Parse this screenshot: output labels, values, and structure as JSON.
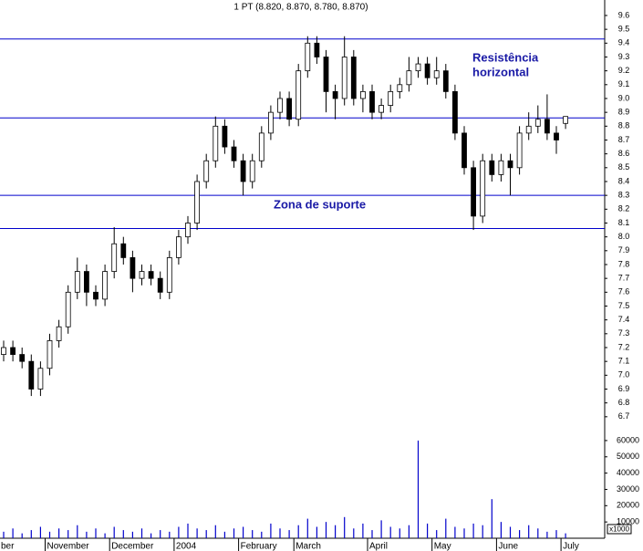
{
  "chart_data": {
    "type": "candlestick",
    "title": "1 PT (8.820, 8.870, 8.780, 8.870)",
    "annotations": [
      "Resistência",
      "horizontal",
      "Zona de suporte"
    ],
    "categories": [
      "ber",
      null,
      null,
      null,
      null,
      "November",
      null,
      null,
      null,
      null,
      null,
      null,
      "December",
      null,
      null,
      null,
      null,
      null,
      null,
      "2004",
      null,
      null,
      null,
      null,
      null,
      null,
      "February",
      null,
      null,
      null,
      null,
      null,
      "March",
      null,
      null,
      null,
      null,
      null,
      null,
      null,
      "April",
      null,
      null,
      null,
      null,
      null,
      null,
      "May",
      null,
      null,
      null,
      null,
      null,
      null,
      "June",
      null,
      null,
      null,
      null,
      null,
      null,
      "July"
    ],
    "open": [
      7.15,
      7.2,
      7.15,
      7.1,
      6.9,
      7.05,
      7.25,
      7.35,
      7.6,
      7.75,
      7.6,
      7.55,
      7.75,
      7.95,
      7.85,
      7.7,
      7.75,
      7.7,
      7.6,
      7.85,
      8.0,
      8.1,
      8.4,
      8.55,
      8.8,
      8.65,
      8.55,
      8.4,
      8.55,
      8.75,
      8.9,
      9.0,
      8.85,
      9.2,
      9.4,
      9.3,
      9.05,
      9.0,
      9.3,
      9.0,
      9.05,
      8.9,
      8.95,
      9.05,
      9.1,
      9.2,
      9.25,
      9.15,
      9.2,
      9.05,
      8.75,
      8.5,
      8.15,
      8.55,
      8.45,
      8.55,
      8.5,
      8.75,
      8.8,
      8.85,
      8.75,
      8.82
    ],
    "high": [
      7.25,
      7.25,
      7.2,
      7.15,
      7.1,
      7.3,
      7.4,
      7.65,
      7.85,
      7.8,
      7.65,
      7.8,
      8.07,
      8.0,
      7.9,
      7.8,
      7.8,
      7.75,
      7.9,
      8.05,
      8.15,
      8.45,
      8.6,
      8.87,
      8.85,
      8.7,
      8.6,
      8.6,
      8.8,
      8.95,
      9.05,
      9.05,
      9.25,
      9.45,
      9.45,
      9.35,
      9.1,
      9.45,
      9.35,
      9.1,
      9.1,
      9.0,
      9.1,
      9.15,
      9.3,
      9.3,
      9.3,
      9.3,
      9.25,
      9.1,
      8.8,
      8.55,
      8.6,
      8.6,
      8.6,
      8.6,
      8.8,
      8.9,
      8.95,
      9.03,
      8.8,
      8.87
    ],
    "low": [
      7.1,
      7.1,
      7.05,
      6.85,
      6.85,
      7.0,
      7.2,
      7.3,
      7.55,
      7.5,
      7.5,
      7.5,
      7.7,
      7.8,
      7.6,
      7.65,
      7.65,
      7.55,
      7.55,
      7.8,
      7.95,
      8.05,
      8.35,
      8.5,
      8.6,
      8.5,
      8.3,
      8.35,
      8.5,
      8.7,
      8.85,
      8.8,
      8.8,
      9.15,
      9.25,
      8.9,
      8.85,
      8.95,
      8.95,
      8.9,
      8.85,
      8.85,
      8.9,
      9.0,
      9.05,
      9.15,
      9.1,
      9.1,
      9.0,
      8.7,
      8.45,
      8.05,
      8.1,
      8.4,
      8.4,
      8.3,
      8.45,
      8.7,
      8.75,
      8.7,
      8.6,
      8.78
    ],
    "close": [
      7.2,
      7.15,
      7.1,
      6.9,
      7.05,
      7.25,
      7.35,
      7.6,
      7.75,
      7.6,
      7.55,
      7.75,
      7.95,
      7.85,
      7.7,
      7.75,
      7.7,
      7.6,
      7.85,
      8.0,
      8.1,
      8.4,
      8.55,
      8.8,
      8.65,
      8.55,
      8.4,
      8.55,
      8.75,
      8.9,
      9.0,
      8.85,
      9.2,
      9.4,
      9.3,
      9.05,
      9.0,
      9.3,
      9.0,
      9.05,
      8.9,
      8.95,
      9.05,
      9.1,
      9.2,
      9.25,
      9.15,
      9.2,
      9.05,
      8.75,
      8.5,
      8.15,
      8.55,
      8.45,
      8.55,
      8.5,
      8.75,
      8.8,
      8.85,
      8.75,
      8.7,
      8.87
    ],
    "volume": [
      4000,
      6000,
      3000,
      5000,
      7000,
      4000,
      6000,
      5000,
      8000,
      4000,
      6000,
      3000,
      7000,
      5000,
      4000,
      6000,
      3000,
      5000,
      4000,
      7000,
      9000,
      6000,
      5000,
      8000,
      4000,
      6000,
      7000,
      5000,
      4000,
      9000,
      6000,
      5000,
      8000,
      12000,
      7000,
      10000,
      8000,
      13000,
      6000,
      9000,
      5000,
      11000,
      7000,
      6000,
      8000,
      60000,
      9000,
      5000,
      12000,
      7000,
      6000,
      9000,
      8000,
      24000,
      10000,
      7000,
      5000,
      8000,
      6000,
      4000,
      5000,
      3000
    ],
    "ylim": [
      6.6,
      9.7
    ],
    "yticks": [
      6.7,
      6.8,
      6.9,
      {
        "value": 7.0,
        "label": "7.0"
      },
      7.1,
      7.2,
      7.3,
      7.4,
      7.5,
      7.6,
      7.7,
      7.8,
      7.9,
      {
        "value": 8.0,
        "label": "8.0"
      },
      8.1,
      8.2,
      8.3,
      8.4,
      8.5,
      8.6,
      8.7,
      8.8,
      8.9,
      {
        "value": 9.0,
        "label": "9.0"
      },
      9.1,
      9.2,
      9.3,
      9.4,
      9.5,
      9.6
    ],
    "volume_ylim": [
      0,
      65000
    ],
    "volume_yticks": [
      10000,
      20000,
      30000,
      40000,
      50000,
      60000
    ],
    "volume_unit": "x1000",
    "hlines": [
      9.43,
      8.86,
      8.3,
      8.06
    ],
    "up_color": "#ffffff",
    "down_color": "#000000",
    "line_color": "#0000cc"
  }
}
